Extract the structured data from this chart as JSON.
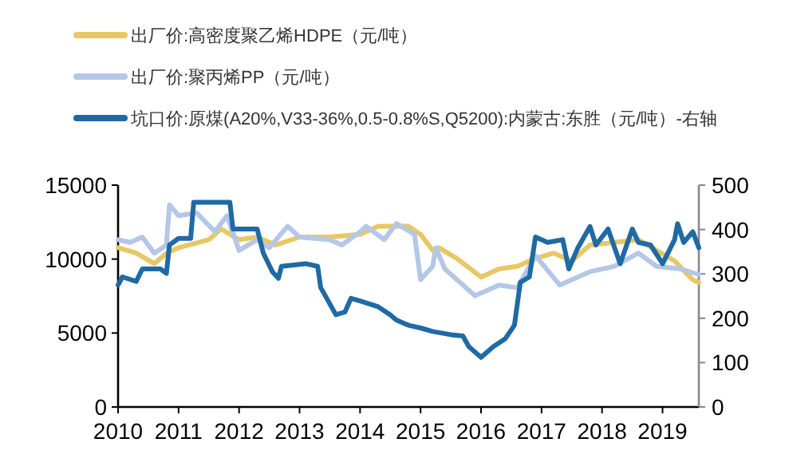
{
  "chart_data": {
    "type": "line",
    "legend": "top",
    "xlim": [
      2010,
      2019.6
    ],
    "xticks": [
      2010,
      2011,
      2012,
      2013,
      2014,
      2015,
      2016,
      2017,
      2018,
      2019
    ],
    "ylim": [
      0,
      15000
    ],
    "yticks": [
      0,
      5000,
      10000,
      15000
    ],
    "y2lim": [
      0,
      500
    ],
    "y2ticks": [
      0,
      100,
      200,
      300,
      400,
      500
    ],
    "series": [
      {
        "name": "出厂价:高密度聚乙烯HDPE（元/吨）",
        "color": "#e8c766",
        "x": [
          2010.0,
          2010.3,
          2010.6,
          2010.8,
          2011.0,
          2011.5,
          2011.7,
          2012.0,
          2012.3,
          2012.6,
          2013.0,
          2013.5,
          2014.0,
          2014.3,
          2014.5,
          2014.8,
          2015.0,
          2015.2,
          2015.3,
          2015.6,
          2016.0,
          2016.3,
          2016.6,
          2016.9,
          2017.2,
          2017.5,
          2017.8,
          2018.2,
          2018.6,
          2018.9,
          2019.2,
          2019.5,
          2019.6
        ],
        "values": [
          10770,
          10400,
          9690,
          10400,
          10770,
          11310,
          12040,
          11310,
          11490,
          10950,
          11490,
          11490,
          11670,
          12220,
          12220,
          12220,
          11670,
          10590,
          10770,
          10050,
          8780,
          9330,
          9510,
          10050,
          10400,
          9870,
          10950,
          11130,
          11310,
          10590,
          9870,
          8600,
          8420
        ]
      },
      {
        "name": "出厂价:聚丙烯PP（元/吨）",
        "color": "#b4c7e7",
        "x": [
          2010.0,
          2010.2,
          2010.4,
          2010.6,
          2010.8,
          2010.85,
          2011.0,
          2011.3,
          2011.6,
          2011.8,
          2012.0,
          2012.3,
          2012.5,
          2012.8,
          2013.0,
          2013.5,
          2013.7,
          2014.0,
          2014.1,
          2014.4,
          2014.6,
          2014.9,
          2015.0,
          2015.2,
          2015.25,
          2015.4,
          2015.9,
          2016.3,
          2016.6,
          2016.9,
          2017.3,
          2017.8,
          2018.2,
          2018.6,
          2018.9,
          2019.3,
          2019.6
        ],
        "values": [
          11310,
          11130,
          11490,
          10400,
          10950,
          13660,
          12940,
          13120,
          11850,
          12940,
          10590,
          11310,
          10770,
          12220,
          11490,
          11310,
          10950,
          11850,
          12220,
          11310,
          12400,
          11670,
          8600,
          9510,
          10770,
          9330,
          7520,
          8240,
          8060,
          10230,
          8240,
          9150,
          9510,
          10400,
          9510,
          9330,
          8960
        ]
      },
      {
        "name": "坑口价:原煤(A20%,V33-36%,0.5-0.8%S,Q5200):内蒙古:东胜（元/吨）-右轴",
        "color": "#1f6aa5",
        "axis": "y2",
        "x": [
          2010.0,
          2010.07,
          2010.3,
          2010.4,
          2010.7,
          2010.8,
          2010.85,
          2011.0,
          2011.2,
          2011.25,
          2011.85,
          2011.9,
          2012.3,
          2012.4,
          2012.55,
          2012.65,
          2012.7,
          2013.1,
          2013.3,
          2013.35,
          2013.6,
          2013.75,
          2013.85,
          2014.0,
          2014.3,
          2014.5,
          2014.6,
          2014.8,
          2015.0,
          2015.2,
          2015.5,
          2015.7,
          2015.8,
          2016.0,
          2016.2,
          2016.4,
          2016.55,
          2016.65,
          2016.8,
          2016.9,
          2017.1,
          2017.35,
          2017.45,
          2017.6,
          2017.8,
          2017.9,
          2018.1,
          2018.3,
          2018.5,
          2018.6,
          2018.8,
          2019.0,
          2019.2,
          2019.25,
          2019.35,
          2019.5,
          2019.6
        ],
        "values": [
          275,
          293,
          283,
          311,
          311,
          301,
          365,
          380,
          380,
          461,
          461,
          401,
          401,
          347,
          305,
          290,
          317,
          323,
          317,
          269,
          208,
          214,
          245,
          239,
          226,
          208,
          196,
          184,
          178,
          170,
          163,
          160,
          136,
          112,
          136,
          154,
          184,
          281,
          293,
          383,
          371,
          377,
          311,
          359,
          407,
          365,
          401,
          323,
          401,
          371,
          365,
          323,
          377,
          413,
          371,
          395,
          359
        ]
      }
    ]
  }
}
